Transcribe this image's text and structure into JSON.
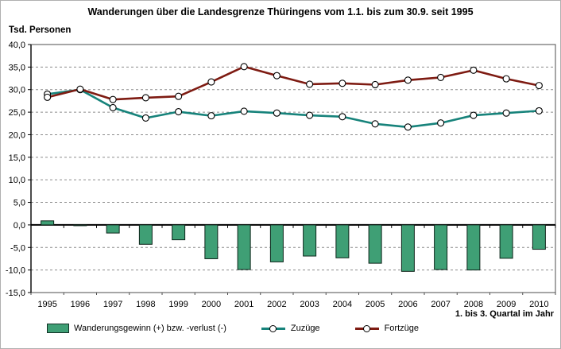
{
  "title": "Wanderungen über die Landesgrenze Thüringens vom 1.1. bis zum 30.9. seit 1995",
  "y_axis_label": "Tsd. Personen",
  "x_axis_note": "1. bis 3. Quartal im Jahr",
  "legend": [
    {
      "type": "bar",
      "label": "Wanderungsgewinn (+) bzw. -verlust (-)",
      "color": "#3f9f75"
    },
    {
      "type": "line",
      "label": "Zuzüge",
      "color": "#17837b"
    },
    {
      "type": "line",
      "label": "Fortzüge",
      "color": "#7e1b12"
    }
  ],
  "colors": {
    "bar_fill": "#3f9f75",
    "bar_stroke": "#0d241a",
    "line_zuzuege": "#17837b",
    "line_fortzuege": "#7e1b12",
    "marker_fill": "#ffffff",
    "marker_stroke": "#000000",
    "gridline": "#8c8c8c",
    "frame": "#4d4d4d",
    "axis": "#000000"
  },
  "chart_data": {
    "type": "bar",
    "title": "Wanderungen über die Landesgrenze Thüringens vom 1.1. bis zum 30.9. seit 1995",
    "xlabel": "1. bis 3. Quartal im Jahr",
    "ylabel": "Tsd. Personen",
    "ylim": [
      -15,
      40
    ],
    "ytick_step": 5,
    "grid": "horizontal-dashed",
    "legend_position": "bottom",
    "categories": [
      "1995",
      "1996",
      "1997",
      "1998",
      "1999",
      "2000",
      "2001",
      "2002",
      "2003",
      "2004",
      "2005",
      "2006",
      "2007",
      "2008",
      "2009",
      "2010"
    ],
    "series": [
      {
        "name": "Wanderungsgewinn (+) bzw. -verlust (-)",
        "type": "bar",
        "color": "#3f9f75",
        "values": [
          0.9,
          -0.1,
          -1.8,
          -4.3,
          -3.3,
          -7.5,
          -9.9,
          -8.2,
          -6.9,
          -7.3,
          -8.5,
          -10.3,
          -9.9,
          -10.0,
          -7.4,
          -5.4
        ]
      },
      {
        "name": "Zuzüge",
        "type": "line",
        "color": "#17837b",
        "values": [
          29.0,
          30.0,
          26.0,
          23.7,
          25.1,
          24.2,
          25.2,
          24.8,
          24.3,
          24.0,
          22.4,
          21.7,
          22.6,
          24.3,
          24.8,
          25.3
        ]
      },
      {
        "name": "Fortzüge",
        "type": "line",
        "color": "#7e1b12",
        "values": [
          28.3,
          30.1,
          27.8,
          28.2,
          28.5,
          31.7,
          35.1,
          33.1,
          31.2,
          31.4,
          31.1,
          32.1,
          32.7,
          34.3,
          32.4,
          30.9
        ]
      }
    ]
  }
}
